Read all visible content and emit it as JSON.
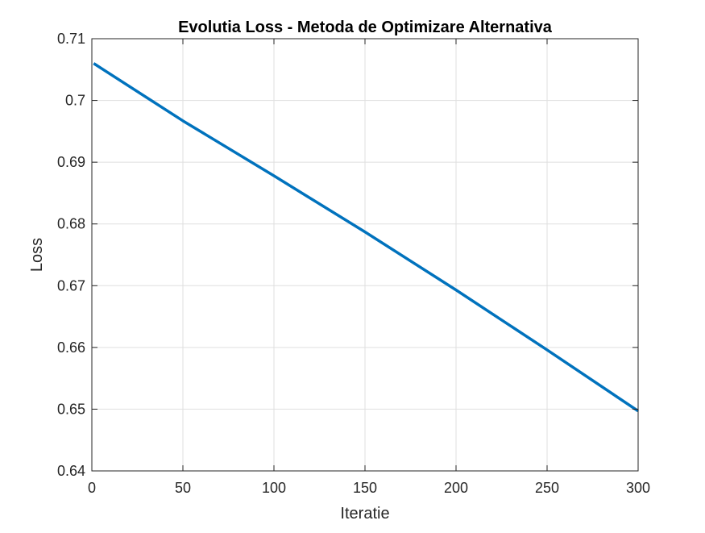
{
  "chart_data": {
    "type": "line",
    "title": "Evolutia Loss - Metoda de Optimizare Alternativa",
    "xlabel": "Iteratie",
    "ylabel": "Loss",
    "xlim": [
      0,
      300
    ],
    "ylim": [
      0.64,
      0.71
    ],
    "xticks": [
      0,
      50,
      100,
      150,
      200,
      250,
      300
    ],
    "xtick_labels": [
      "0",
      "50",
      "100",
      "150",
      "200",
      "250",
      "300"
    ],
    "yticks": [
      0.64,
      0.65,
      0.66,
      0.67,
      0.68,
      0.69,
      0.7,
      0.71
    ],
    "ytick_labels": [
      "0.64",
      "0.65",
      "0.66",
      "0.67",
      "0.68",
      "0.69",
      "0.7",
      "0.71"
    ],
    "grid": true,
    "series": [
      {
        "color": "#0072BD",
        "x": [
          1,
          50,
          100,
          150,
          200,
          250,
          300
        ],
        "y": [
          0.706,
          0.6967,
          0.6878,
          0.6787,
          0.6693,
          0.6596,
          0.6497
        ]
      }
    ]
  }
}
